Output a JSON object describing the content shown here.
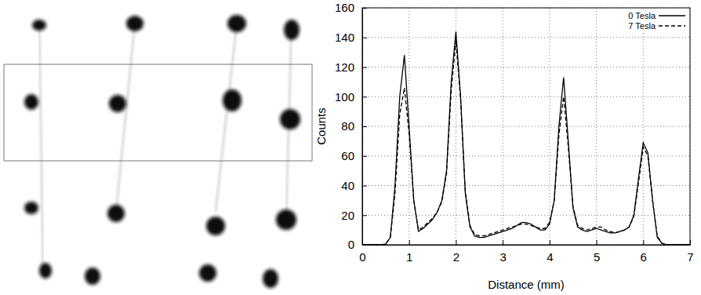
{
  "chart_data": {
    "type": "line",
    "xlabel": "Distance (mm)",
    "ylabel": "Counts",
    "x": [
      0,
      0.1,
      0.2,
      0.3,
      0.4,
      0.5,
      0.6,
      0.7,
      0.8,
      0.9,
      1.0,
      1.1,
      1.2,
      1.3,
      1.4,
      1.5,
      1.6,
      1.7,
      1.8,
      1.9,
      2.0,
      2.1,
      2.2,
      2.3,
      2.4,
      2.5,
      2.6,
      2.7,
      2.8,
      2.9,
      3.0,
      3.1,
      3.2,
      3.3,
      3.4,
      3.5,
      3.6,
      3.7,
      3.8,
      3.9,
      4.0,
      4.1,
      4.2,
      4.3,
      4.4,
      4.5,
      4.6,
      4.7,
      4.8,
      4.9,
      5.0,
      5.1,
      5.2,
      5.3,
      5.4,
      5.5,
      5.6,
      5.7,
      5.8,
      5.9,
      6.0,
      6.1,
      6.2,
      6.3,
      6.4,
      6.5,
      6.6,
      6.7,
      6.8,
      6.9,
      7.0
    ],
    "series": [
      {
        "name": "0 Tesla",
        "color": "#000000",
        "line_style": "solid",
        "values": [
          0,
          0,
          0,
          0,
          0,
          0.5,
          5,
          40,
          100,
          128,
          80,
          30,
          9,
          11,
          14,
          17,
          22,
          30,
          50,
          110,
          144,
          100,
          35,
          12,
          6,
          5,
          5,
          6,
          7,
          8,
          9,
          10,
          11,
          13,
          15,
          15,
          14,
          12,
          10,
          10,
          14,
          30,
          80,
          113,
          70,
          25,
          12,
          10,
          9,
          10,
          11,
          10,
          9,
          8,
          8,
          9,
          10,
          12,
          20,
          45,
          69,
          62,
          30,
          5,
          1,
          0,
          0,
          0,
          0,
          0,
          0
        ]
      },
      {
        "name": "7 Tesla",
        "color": "#000000",
        "line_style": "dashed",
        "values": [
          0,
          0,
          0,
          0,
          0,
          0.5,
          5,
          35,
          88,
          106,
          75,
          30,
          10,
          12,
          15,
          18,
          22,
          29,
          48,
          104,
          138,
          98,
          36,
          13,
          7,
          6,
          6,
          7,
          8,
          9,
          10,
          11,
          12,
          13,
          14,
          14,
          13,
          12,
          11,
          11,
          15,
          30,
          74,
          100,
          66,
          26,
          13,
          11,
          10,
          11,
          12,
          12,
          10,
          9,
          8,
          9,
          10,
          12,
          19,
          42,
          66,
          60,
          30,
          6,
          1,
          0,
          0,
          0,
          0,
          0,
          0
        ]
      }
    ],
    "xlim": [
      0,
      7
    ],
    "ylim": [
      0,
      160
    ],
    "xticks": [
      0,
      1,
      2,
      3,
      4,
      5,
      6,
      7
    ],
    "yticks": [
      0,
      20,
      40,
      60,
      80,
      100,
      120,
      140,
      160
    ],
    "grid": true,
    "legend": "top-right"
  }
}
